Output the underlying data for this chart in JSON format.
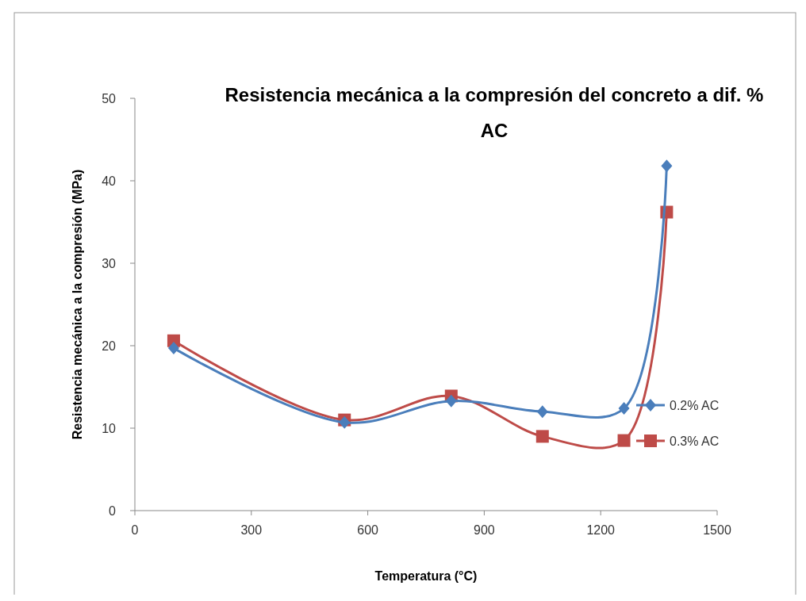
{
  "chart_data": {
    "type": "line",
    "title": "Resistencia mecánica a la compresión del concreto a dif. % AC",
    "xlabel": "Temperatura (°C)",
    "ylabel": "Resistencia mecánica a la compresión (MPa)",
    "x": [
      100,
      540,
      815,
      1050,
      1260,
      1370
    ],
    "series": [
      {
        "name": "0.2% AC",
        "color": "#4a7ebb",
        "marker": "diamond",
        "values": [
          19.7,
          10.7,
          13.3,
          12.0,
          12.4,
          41.8
        ]
      },
      {
        "name": "0.3% AC",
        "color": "#be4b48",
        "marker": "square",
        "values": [
          20.6,
          11.0,
          13.9,
          9.0,
          8.5,
          36.2
        ]
      }
    ],
    "xlim": [
      0,
      1500
    ],
    "xticks": [
      0,
      300,
      600,
      900,
      1200,
      1500
    ],
    "ylim": [
      0,
      50
    ],
    "yticks": [
      0,
      10,
      20,
      30,
      40,
      50
    ],
    "grid": false,
    "legend": "right"
  }
}
